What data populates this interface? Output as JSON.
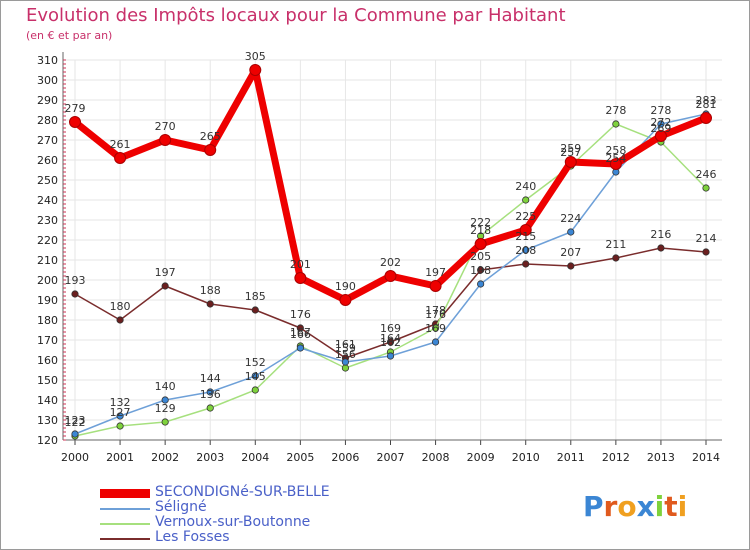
{
  "chart_data": {
    "type": "line",
    "title": "Evolution des Impôts locaux pour la Commune par Habitant",
    "subtitle": "(en € et par an)",
    "xlabel": "",
    "ylabel": "",
    "ylim": [
      120,
      310
    ],
    "yticks": [
      120,
      130,
      140,
      150,
      160,
      170,
      180,
      190,
      200,
      210,
      220,
      230,
      240,
      250,
      260,
      270,
      280,
      290,
      300,
      310
    ],
    "categories": [
      "2000",
      "2001",
      "2002",
      "2003",
      "2004",
      "2005",
      "2006",
      "2007",
      "2008",
      "2009",
      "2010",
      "2011",
      "2012",
      "2013",
      "2014"
    ],
    "series": [
      {
        "name": "SECONDIGNé-SUR-BELLE",
        "color": "#ee0000",
        "marker": "#ee0000",
        "values": [
          279,
          261,
          270,
          265,
          305,
          201,
          190,
          202,
          197,
          218,
          225,
          259,
          258,
          272,
          281
        ]
      },
      {
        "name": "Séligné",
        "color": "#6ea0d8",
        "marker": "#3b86d4",
        "values": [
          123,
          132,
          140,
          144,
          152,
          166,
          159,
          162,
          169,
          198,
          215,
          224,
          254,
          278,
          283
        ]
      },
      {
        "name": "Vernoux-sur-Boutonne",
        "color": "#a6e07e",
        "marker": "#7ed23c",
        "values": [
          122,
          127,
          129,
          136,
          145,
          167,
          156,
          164,
          176,
          222,
          240,
          257,
          278,
          269,
          246
        ]
      },
      {
        "name": "Les Fosses",
        "color": "#7a2c2c",
        "marker": "#6b1f1f",
        "values": [
          193,
          180,
          197,
          188,
          185,
          176,
          161,
          169,
          178,
          205,
          208,
          207,
          211,
          216,
          214
        ]
      }
    ]
  },
  "legend": {
    "items": [
      {
        "label": "SECONDIGNé-SUR-BELLE",
        "color": "#ee0000"
      },
      {
        "label": "Séligné",
        "color": "#6ea0d8"
      },
      {
        "label": "Vernoux-sur-Boutonne",
        "color": "#a6e07e"
      },
      {
        "label": "Les Fosses",
        "color": "#7a2c2c"
      }
    ]
  },
  "logo": {
    "text": "Proxiti",
    "letters": [
      "P",
      "r",
      "o",
      "x",
      "i",
      "t",
      "i"
    ],
    "colors": [
      "#3b86d4",
      "#e05a1e",
      "#f0a020",
      "#3b86d4",
      "#7ed23c",
      "#e05a1e",
      "#f0a020"
    ]
  }
}
